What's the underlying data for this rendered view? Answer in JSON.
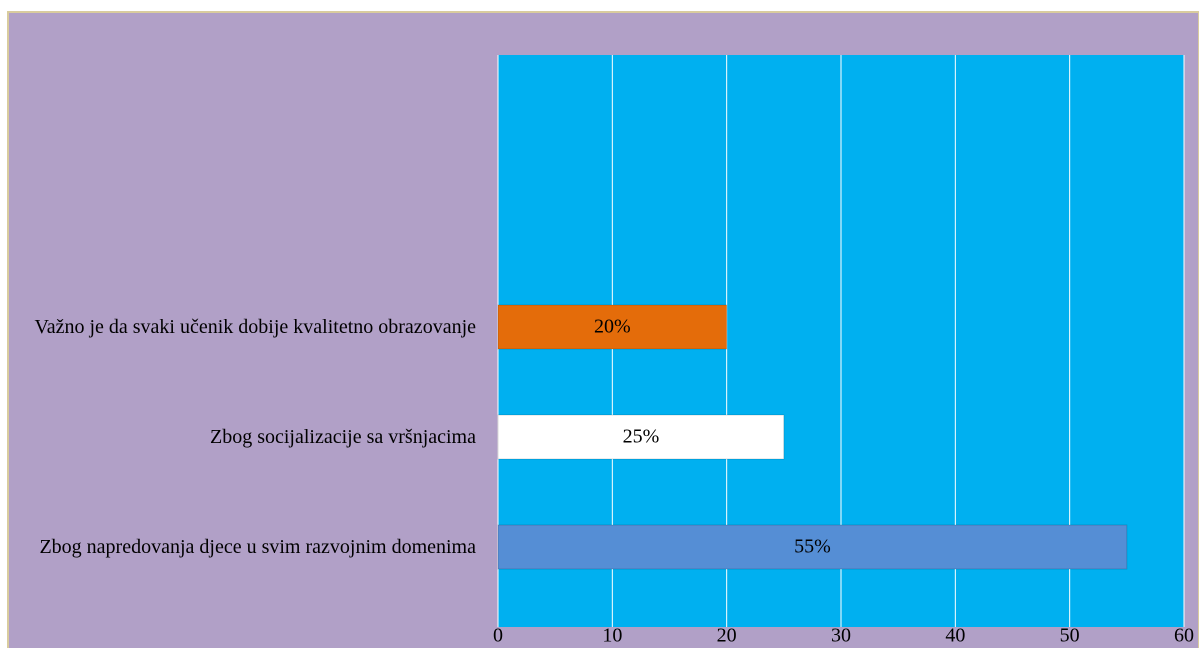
{
  "chart_data": {
    "type": "bar",
    "orientation": "horizontal",
    "categories": [
      "Zbog napredovanja djece u svim razvojnim domenima",
      "Zbog socijalizacije sa vršnjacima",
      "Važno je da svaki učenik dobije kvalitetno obrazovanje"
    ],
    "values": [
      55,
      25,
      20
    ],
    "value_labels": [
      "55%",
      "25%",
      "20%"
    ],
    "colors": [
      "#558ed5",
      "#ffffff",
      "#e46c0a"
    ],
    "xlim": [
      0,
      60
    ],
    "xticks": [
      0,
      10,
      20,
      30,
      40,
      50,
      60
    ],
    "grid": true
  }
}
